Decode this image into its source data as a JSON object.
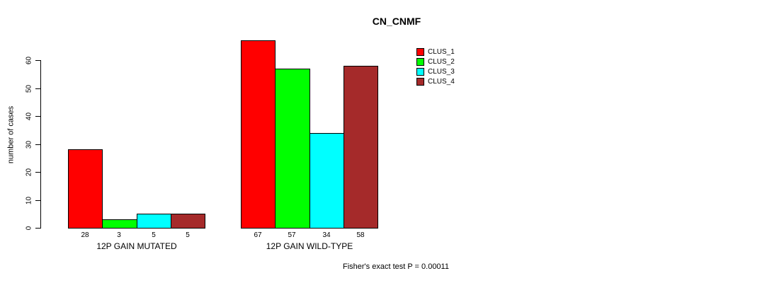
{
  "title": "CN_CNMF",
  "ylabel": "number of cases",
  "footer": "Fisher's exact test P = 0.00011",
  "chart_data": {
    "type": "bar",
    "grouped": true,
    "title": "CN_CNMF",
    "xlabel": "",
    "ylabel": "number of cases",
    "categories": [
      "12P GAIN MUTATED",
      "12P GAIN WILD-TYPE"
    ],
    "series": [
      {
        "name": "CLUS_1",
        "color": "#FF0000",
        "values": [
          28,
          67
        ]
      },
      {
        "name": "CLUS_2",
        "color": "#00FF00",
        "values": [
          3,
          57
        ]
      },
      {
        "name": "CLUS_3",
        "color": "#00FFFF",
        "values": [
          5,
          34
        ]
      },
      {
        "name": "CLUS_4",
        "color": "#A52A2A",
        "values": [
          5,
          58
        ]
      }
    ],
    "yticks": [
      0,
      10,
      20,
      30,
      40,
      50,
      60
    ],
    "ylim": [
      0,
      67
    ],
    "grid": false,
    "bar_value_labels_shown": true,
    "legend_position": "top-right",
    "annotation": "Fisher's exact test P = 0.00011",
    "axis_color": "#000000",
    "background_color": "#FFFFFF"
  }
}
